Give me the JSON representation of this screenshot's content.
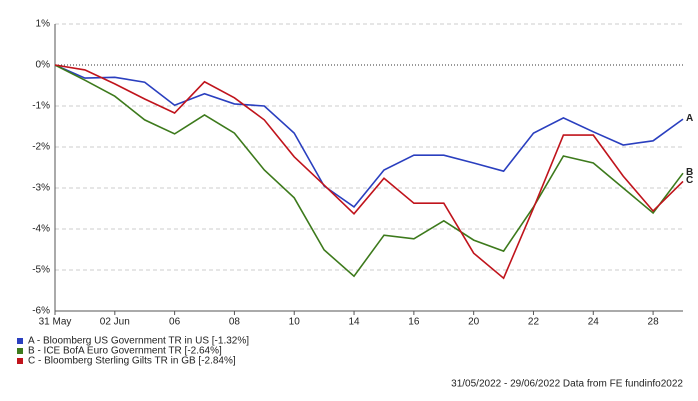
{
  "chart_data": {
    "type": "line",
    "categories": [
      "31 May",
      null,
      "02 Jun",
      null,
      "06",
      null,
      "08",
      null,
      "10",
      null,
      "14",
      null,
      "16",
      null,
      "20",
      null,
      "22",
      null,
      "24",
      null,
      "28",
      null
    ],
    "series": [
      {
        "name": "A - Bloomberg US Government TR in US [-1.32%]",
        "end_label": "A",
        "color": "#2a3fbf",
        "values": [
          0,
          -0.32,
          -0.3,
          -0.42,
          -0.98,
          -0.7,
          -0.95,
          -1.0,
          -1.66,
          -2.95,
          -3.46,
          -2.56,
          -2.2,
          -2.2,
          -2.39,
          -2.59,
          -1.66,
          -1.29,
          -1.63,
          -1.95,
          -1.85,
          -1.32
        ]
      },
      {
        "name": "B - ICE BofA Euro Government TR [-2.64%]",
        "end_label": "B",
        "color": "#3d7a1c",
        "values": [
          0,
          -0.37,
          -0.76,
          -1.34,
          -1.68,
          -1.22,
          -1.66,
          -2.56,
          -3.24,
          -4.51,
          -5.15,
          -4.15,
          -4.24,
          -3.8,
          -4.27,
          -4.54,
          -3.46,
          -2.22,
          -2.39,
          -3.0,
          -3.61,
          -2.64
        ]
      },
      {
        "name": "C - Bloomberg Sterling Gilts TR in GB [-2.84%]",
        "end_label": "C",
        "color": "#c0141c",
        "values": [
          0,
          -0.12,
          -0.46,
          -0.83,
          -1.17,
          -0.41,
          -0.8,
          -1.34,
          -2.24,
          -2.93,
          -3.63,
          -2.76,
          -3.37,
          -3.37,
          -4.59,
          -5.2,
          -3.49,
          -1.71,
          -1.71,
          -2.71,
          -3.56,
          -2.84
        ]
      }
    ],
    "ylim": [
      -6,
      1
    ],
    "yticks": [
      {
        "value": 1,
        "label": "1%"
      },
      {
        "value": 0,
        "label": "0%"
      },
      {
        "value": -1,
        "label": "-1%"
      },
      {
        "value": -2,
        "label": "-2%"
      },
      {
        "value": -3,
        "label": "-3%"
      },
      {
        "value": -4,
        "label": "-4%"
      },
      {
        "value": -5,
        "label": "-5%"
      },
      {
        "value": -6,
        "label": "-6%"
      }
    ],
    "grid": true,
    "footer": "31/05/2022 - 29/06/2022 Data from FE fundinfo2022"
  }
}
